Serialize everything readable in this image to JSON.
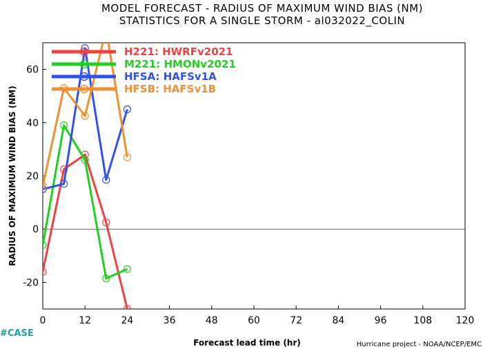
{
  "chart_data": {
    "type": "line",
    "title": "MODEL FORECAST - RADIUS OF MAXIMUM WIND BIAS (NM)",
    "subtitle": "STATISTICS FOR A SINGLE STORM - al032022_COLIN",
    "xlabel": "Forecast lead time (hr)",
    "ylabel": "RADIUS OF MAXIMUM WIND BIAS (NM)",
    "xlim": [
      0,
      120
    ],
    "ylim": [
      -30,
      70
    ],
    "xticks": [
      "0",
      "12",
      "24",
      "36",
      "48",
      "60",
      "72",
      "84",
      "96",
      "108",
      "120"
    ],
    "yticks": [
      "-20",
      "0",
      "20",
      "40",
      "60"
    ],
    "grid": false,
    "legend_position": "top-left",
    "series": [
      {
        "name": "H221: HWRFv2021",
        "color": "#f04040",
        "x": [
          0,
          6,
          12,
          18,
          24
        ],
        "y": [
          -16,
          22.5,
          28,
          2.5,
          -30
        ]
      },
      {
        "name": "M221: HMONv2021",
        "color": "#20d020",
        "x": [
          0,
          6,
          12,
          18,
          24
        ],
        "y": [
          -6,
          39,
          26,
          -18.5,
          -15
        ]
      },
      {
        "name": "HFSA: HAFSv1A",
        "color": "#3050f0",
        "x": [
          0,
          6,
          12,
          18,
          24
        ],
        "y": [
          15,
          17,
          68,
          18.5,
          45
        ]
      },
      {
        "name": "HFSB: HAFSv1B",
        "color": "#f09030",
        "x": [
          0,
          6,
          12,
          18,
          24
        ],
        "y": [
          16,
          53,
          42.5,
          75,
          27
        ]
      }
    ]
  },
  "footer": {
    "case_label": "#CASE",
    "credit": "Hurricane project - NOAA/NCEP/EMC"
  }
}
